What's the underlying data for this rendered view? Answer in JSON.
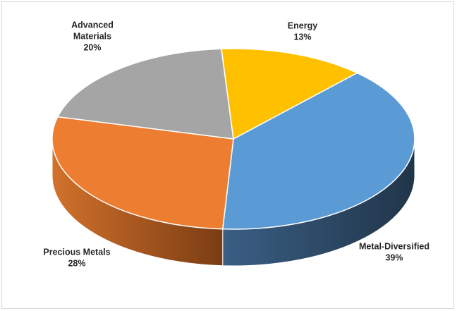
{
  "chart_data": {
    "type": "pie",
    "style": "3d",
    "slices": [
      {
        "label": "Metal-Diversified",
        "value": 39,
        "pct_label": "39%",
        "color": "#5B9BD5",
        "side_dark": "#203549",
        "side_light": "#3a5f85"
      },
      {
        "label": "Precious Metals",
        "value": 28,
        "pct_label": "28%",
        "color": "#ED7D31",
        "side_dark": "#7a3d13",
        "side_light": "#d2712c"
      },
      {
        "label": "Advanced Materials",
        "value": 20,
        "pct_label": "20%",
        "color": "#A5A5A5",
        "side_dark": "#5a5a5a",
        "side_light": "#9a9a9a"
      },
      {
        "label": "Energy",
        "value": 13,
        "pct_label": "13%",
        "color": "#FFC000",
        "side_dark": "#7f6000",
        "side_light": "#d9a300"
      }
    ]
  }
}
